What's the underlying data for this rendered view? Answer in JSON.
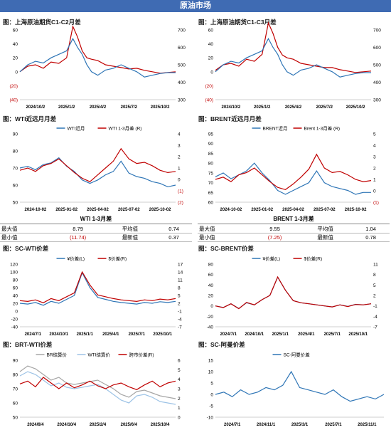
{
  "header": {
    "title": "原油市场"
  },
  "panels": {
    "p1": {
      "title": "图：上海原油期货C1-C2月差"
    },
    "p2": {
      "title": "图：上海原油期货C1-C3月差"
    },
    "p3": {
      "title": "图：WTI近远月月差"
    },
    "p4": {
      "title": "图：BRENT近远月月差"
    },
    "p5": {
      "title": "图：SC-WTI价差"
    },
    "p6": {
      "title": "图：SC-BRENT价差"
    },
    "p7": {
      "title": "图：BRT-WTI价差"
    },
    "p8": {
      "title": "图：SC-阿曼价差"
    }
  },
  "stats": {
    "wti": {
      "title": "WTI 1-3月差",
      "max_label": "最大值",
      "max": "8.79",
      "avg_label": "平均值",
      "avg": "0.74",
      "min_label": "最小值",
      "min": "(11.74)",
      "latest_label": "最新值",
      "latest": "0.37"
    },
    "brent": {
      "title": "BRENT 1-3月差",
      "max_label": "最大值",
      "max": "9.55",
      "avg_label": "平均值",
      "avg": "1.04",
      "min_label": "最小值",
      "min": "(7.25)",
      "latest_label": "最新值",
      "latest": "0.78"
    }
  },
  "chart_data": [
    {
      "id": "c1",
      "type": "line",
      "left_ticks": [
        "60",
        "40",
        "20",
        "0",
        "(20)",
        "(40)"
      ],
      "right_ticks": [
        "700",
        "600",
        "500",
        "400",
        "300"
      ],
      "ylim": [
        -40,
        60
      ],
      "y2lim": [
        300,
        700
      ],
      "x_ticks": [
        "2024/10/2",
        "2025/1/2",
        "2025/4/2",
        "2025/7/2",
        "2025/10/2"
      ],
      "series": [
        {
          "color": "#c00000",
          "axis": "left"
        },
        {
          "color": "#2e75b6",
          "axis": "right"
        }
      ],
      "x": [
        0,
        0.05,
        0.1,
        0.15,
        0.2,
        0.25,
        0.3,
        0.34,
        0.37,
        0.4,
        0.43,
        0.46,
        0.5,
        0.55,
        0.6,
        0.65,
        0.7,
        0.75,
        0.8,
        0.85,
        0.9,
        0.95,
        1
      ],
      "values": [
        [
          0,
          8,
          10,
          5,
          14,
          12,
          20,
          65,
          50,
          30,
          20,
          18,
          16,
          10,
          8,
          6,
          4,
          5,
          2,
          0,
          -2,
          -1,
          0
        ],
        [
          460,
          500,
          520,
          510,
          540,
          560,
          580,
          650,
          600,
          560,
          500,
          460,
          440,
          470,
          480,
          500,
          480,
          460,
          430,
          440,
          450,
          455,
          455
        ]
      ]
    },
    {
      "id": "c2",
      "type": "line",
      "left_ticks": [
        "60",
        "40",
        "20",
        "0",
        "(20)",
        "(40)"
      ],
      "right_ticks": [
        "700",
        "600",
        "500",
        "400",
        "300"
      ],
      "ylim": [
        -40,
        60
      ],
      "y2lim": [
        300,
        700
      ],
      "x_ticks": [
        "2024/10/2",
        "2025/1/2",
        "2025/4/2",
        "2025/7/2",
        "2025/10/2"
      ],
      "series": [
        {
          "color": "#c00000",
          "axis": "left"
        },
        {
          "color": "#2e75b6",
          "axis": "right"
        }
      ],
      "x": [
        0,
        0.05,
        0.1,
        0.15,
        0.2,
        0.25,
        0.3,
        0.34,
        0.37,
        0.4,
        0.43,
        0.46,
        0.5,
        0.55,
        0.6,
        0.65,
        0.7,
        0.75,
        0.8,
        0.85,
        0.9,
        0.95,
        1
      ],
      "values": [
        [
          2,
          10,
          12,
          8,
          18,
          15,
          25,
          70,
          55,
          35,
          24,
          20,
          18,
          12,
          10,
          8,
          6,
          6,
          3,
          1,
          -1,
          0,
          1
        ],
        [
          460,
          500,
          520,
          510,
          540,
          560,
          580,
          650,
          600,
          560,
          500,
          460,
          440,
          470,
          480,
          500,
          480,
          460,
          430,
          440,
          450,
          455,
          455
        ]
      ]
    },
    {
      "id": "c3",
      "type": "line",
      "left_ticks": [
        "90",
        "80",
        "70",
        "60",
        "50"
      ],
      "right_ticks": [
        "4",
        "3",
        "2",
        "1",
        "0",
        "(1)",
        "(2)"
      ],
      "ylim": [
        50,
        90
      ],
      "y2lim": [
        -2,
        4
      ],
      "x_ticks": [
        "2024-10-02",
        "2025-01-02",
        "2025-04-02",
        "2025-07-02",
        "2025-10-02"
      ],
      "legend": [
        "WTI近月",
        "WTI 1-3月差 (R)"
      ],
      "series": [
        {
          "name": "WTI近月",
          "color": "#2e75b6",
          "axis": "left"
        },
        {
          "name": "WTI 1-3月差 (R)",
          "color": "#c00000",
          "axis": "right"
        }
      ],
      "x": [
        0,
        0.05,
        0.1,
        0.15,
        0.2,
        0.25,
        0.3,
        0.35,
        0.4,
        0.45,
        0.5,
        0.55,
        0.6,
        0.65,
        0.7,
        0.75,
        0.8,
        0.85,
        0.9,
        0.95,
        1
      ],
      "values": [
        [
          70,
          71,
          69,
          72,
          73,
          76,
          71,
          68,
          63,
          61,
          63,
          66,
          68,
          74,
          67,
          65,
          64,
          62,
          61,
          59,
          60
        ],
        [
          0.8,
          1.0,
          0.7,
          1.2,
          1.4,
          1.8,
          1.2,
          0.6,
          0.1,
          -0.2,
          0.4,
          1.0,
          1.6,
          2.7,
          1.8,
          1.4,
          1.5,
          1.2,
          0.8,
          0.6,
          0.7
        ]
      ]
    },
    {
      "id": "c4",
      "type": "line",
      "left_ticks": [
        "95",
        "90",
        "85",
        "80",
        "75",
        "70",
        "65",
        "60"
      ],
      "right_ticks": [
        "5",
        "4",
        "3",
        "2",
        "1",
        "0",
        "(1)"
      ],
      "ylim": [
        60,
        95
      ],
      "y2lim": [
        -1,
        5
      ],
      "x_ticks": [
        "2024-10-02",
        "2025-01-02",
        "2025-04-02",
        "2025-07-02",
        "2025-10-02"
      ],
      "legend": [
        "BRENT近月",
        "Brent 1-3月差 (R)"
      ],
      "series": [
        {
          "name": "BRENT近月",
          "color": "#2e75b6",
          "axis": "left"
        },
        {
          "name": "Brent 1-3月差 (R)",
          "color": "#c00000",
          "axis": "right"
        }
      ],
      "x": [
        0,
        0.05,
        0.1,
        0.15,
        0.2,
        0.25,
        0.3,
        0.35,
        0.4,
        0.45,
        0.5,
        0.55,
        0.6,
        0.65,
        0.7,
        0.75,
        0.8,
        0.85,
        0.9,
        0.95,
        1
      ],
      "values": [
        [
          73,
          75,
          72,
          74,
          76,
          80,
          75,
          71,
          66,
          64,
          66,
          68,
          70,
          76,
          70,
          68,
          67,
          66,
          64,
          65,
          65
        ],
        [
          1.0,
          1.2,
          0.8,
          1.4,
          1.6,
          2.0,
          1.4,
          0.8,
          0.3,
          0.1,
          0.6,
          1.2,
          1.9,
          3.2,
          2.0,
          1.6,
          1.7,
          1.4,
          1.0,
          0.8,
          0.9
        ]
      ]
    },
    {
      "id": "c5",
      "type": "line",
      "left_ticks": [
        "120",
        "100",
        "80",
        "60",
        "40",
        "20",
        "0",
        "-20",
        "-40"
      ],
      "right_ticks": [
        "17",
        "14",
        "11",
        "8",
        "5",
        "2",
        "-1",
        "-4",
        "-7"
      ],
      "ylim": [
        -40,
        120
      ],
      "y2lim": [
        -7,
        17
      ],
      "x_ticks": [
        "2024/7/1",
        "2024/10/1",
        "2025/1/1",
        "2025/4/1",
        "2025/7/1",
        "2025/10/1"
      ],
      "legend": [
        "¥价差(L)",
        "$价差(R)"
      ],
      "series": [
        {
          "name": "¥价差(L)",
          "color": "#2e75b6",
          "axis": "left"
        },
        {
          "name": "$价差(R)",
          "color": "#c00000",
          "axis": "right"
        }
      ],
      "x": [
        0,
        0.05,
        0.1,
        0.15,
        0.2,
        0.25,
        0.3,
        0.35,
        0.4,
        0.45,
        0.5,
        0.55,
        0.6,
        0.65,
        0.7,
        0.75,
        0.8,
        0.85,
        0.9,
        0.95,
        1
      ],
      "values": [
        [
          20,
          18,
          22,
          15,
          25,
          20,
          30,
          40,
          98,
          60,
          35,
          30,
          25,
          22,
          20,
          18,
          22,
          20,
          24,
          22,
          25
        ],
        [
          3,
          2.7,
          3.3,
          2.2,
          3.8,
          3,
          4.5,
          6,
          14,
          9,
          5.2,
          4.5,
          3.8,
          3.3,
          3,
          2.7,
          3.3,
          3,
          3.6,
          3.3,
          3.8
        ]
      ]
    },
    {
      "id": "c6",
      "type": "line",
      "left_ticks": [
        "80",
        "60",
        "40",
        "20",
        "0",
        "-20",
        "-40"
      ],
      "right_ticks": [
        "11",
        "8",
        "5",
        "2",
        "-1",
        "-4",
        "-7"
      ],
      "ylim": [
        -40,
        80
      ],
      "y2lim": [
        -7,
        11
      ],
      "x_ticks": [
        "2024/7/1",
        "2024/10/1",
        "2025/1/1",
        "2025/4/1",
        "2025/7/1",
        "2025/10/1"
      ],
      "legend": [
        "¥价差(L)",
        "$价差(R)"
      ],
      "series": [
        {
          "name": "¥价差(L)",
          "color": "#2e75b6",
          "axis": "left"
        },
        {
          "name": "$价差(R)",
          "color": "#c00000",
          "axis": "right"
        }
      ],
      "x": [
        0,
        0.05,
        0.1,
        0.15,
        0.2,
        0.25,
        0.3,
        0.35,
        0.4,
        0.45,
        0.5,
        0.55,
        0.6,
        0.65,
        0.7,
        0.75,
        0.8,
        0.85,
        0.9,
        0.95,
        1
      ],
      "values": [
        [
          0,
          -3,
          4,
          -5,
          6,
          2,
          12,
          20,
          55,
          30,
          10,
          6,
          4,
          2,
          0,
          -2,
          2,
          -1,
          3,
          2,
          4
        ],
        [
          -1,
          -1.5,
          -0.4,
          -1.8,
          0,
          -0.7,
          0.8,
          2,
          7.3,
          3.5,
          0.5,
          -0.1,
          -0.4,
          -0.7,
          -1,
          -1.3,
          -0.7,
          -1.2,
          -0.6,
          -0.7,
          -0.4
        ]
      ]
    },
    {
      "id": "c7",
      "type": "line",
      "left_ticks": [
        "90",
        "80",
        "70",
        "60",
        "50"
      ],
      "right_ticks": [
        "6",
        "5",
        "4",
        "3",
        "2",
        "1",
        "0"
      ],
      "ylim": [
        50,
        90
      ],
      "y2lim": [
        0,
        6
      ],
      "x_ticks": [
        "2024/6/4",
        "2024/10/4",
        "2025/2/4",
        "2025/6/4",
        "2025/10/4"
      ],
      "legend": [
        "BR结算价",
        "WTI结算价",
        "跨市价差(R)"
      ],
      "series": [
        {
          "name": "BR结算价",
          "color": "#a6a6a6",
          "axis": "left"
        },
        {
          "name": "WTI结算价",
          "color": "#9dc3e6",
          "axis": "left"
        },
        {
          "name": "跨市价差(R)",
          "color": "#c00000",
          "axis": "right"
        }
      ],
      "x": [
        0,
        0.05,
        0.1,
        0.15,
        0.2,
        0.25,
        0.3,
        0.35,
        0.4,
        0.45,
        0.5,
        0.55,
        0.6,
        0.65,
        0.7,
        0.75,
        0.8,
        0.85,
        0.9,
        0.95,
        1
      ],
      "values": [
        [
          82,
          86,
          84,
          80,
          76,
          78,
          74,
          73,
          74,
          75,
          76,
          73,
          70,
          66,
          64,
          68,
          69,
          67,
          65,
          64,
          63
        ],
        [
          79,
          82,
          80,
          76,
          72,
          74,
          71,
          70,
          71,
          72,
          73,
          70,
          66,
          62,
          60,
          65,
          66,
          64,
          61,
          60,
          59
        ],
        [
          3.5,
          3.8,
          3.2,
          4.2,
          3.6,
          3.0,
          3.6,
          3.1,
          3.4,
          3.8,
          3.3,
          3.0,
          3.4,
          3.6,
          3.2,
          2.9,
          3.4,
          3.8,
          3.2,
          3.6,
          3.8
        ]
      ]
    },
    {
      "id": "c8",
      "type": "line",
      "left_ticks": [
        "15",
        "10",
        "5",
        "0",
        "-5",
        "-10"
      ],
      "right_ticks": [],
      "ylim": [
        -10,
        15
      ],
      "x_ticks": [
        "2024/7/1",
        "2024/11/1",
        "2025/3/1",
        "2025/7/1",
        "2025/11/1"
      ],
      "legend": [
        "SC-阿曼价差"
      ],
      "series": [
        {
          "name": "SC-阿曼价差",
          "color": "#2e75b6",
          "axis": "left"
        }
      ],
      "x": [
        0,
        0.05,
        0.1,
        0.15,
        0.2,
        0.25,
        0.3,
        0.35,
        0.4,
        0.45,
        0.5,
        0.55,
        0.6,
        0.65,
        0.7,
        0.75,
        0.8,
        0.85,
        0.9,
        0.95,
        1
      ],
      "values": [
        [
          0,
          1,
          -1,
          2,
          0,
          1,
          3,
          2,
          4,
          10,
          3,
          2,
          1,
          0,
          2,
          -1,
          -3,
          -2,
          -1,
          -2,
          0
        ]
      ]
    }
  ]
}
